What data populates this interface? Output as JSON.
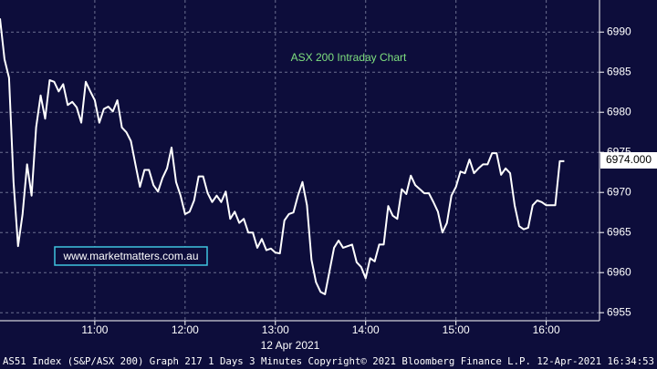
{
  "chart_data": {
    "type": "line",
    "title": "ASX 200 Intraday Chart",
    "watermark": "www.marketmatters.com.au",
    "date_label": "12 Apr 2021",
    "footer": "AS51 Index (S&P/ASX 200) Graph 217 1 Days 3 Minutes Copyright© 2021 Bloomberg Finance L.P. 12-Apr-2021 16:34:53",
    "last_price": {
      "value": 6974,
      "label": "6974.000"
    },
    "x": [
      9.95,
      10,
      10.05,
      10.1,
      10.15,
      10.2,
      10.25,
      10.3,
      10.35,
      10.4,
      10.45,
      10.5,
      10.55,
      10.6,
      10.65,
      10.7,
      10.75,
      10.8,
      10.85,
      10.9,
      10.95,
      11,
      11.05,
      11.1,
      11.15,
      11.2,
      11.25,
      11.3,
      11.35,
      11.4,
      11.45,
      11.5,
      11.55,
      11.6,
      11.65,
      11.7,
      11.75,
      11.8,
      11.85,
      11.9,
      11.95,
      12,
      12.05,
      12.1,
      12.15,
      12.2,
      12.25,
      12.3,
      12.35,
      12.4,
      12.45,
      12.5,
      12.55,
      12.6,
      12.65,
      12.7,
      12.75,
      12.8,
      12.85,
      12.9,
      12.95,
      13,
      13.05,
      13.1,
      13.15,
      13.2,
      13.25,
      13.3,
      13.35,
      13.4,
      13.45,
      13.5,
      13.55,
      13.6,
      13.65,
      13.7,
      13.75,
      13.8,
      13.85,
      13.9,
      13.95,
      14,
      14.05,
      14.1,
      14.15,
      14.2,
      14.25,
      14.3,
      14.35,
      14.4,
      14.45,
      14.5,
      14.55,
      14.6,
      14.65,
      14.7,
      14.75,
      14.8,
      14.85,
      14.9,
      14.95,
      15,
      15.05,
      15.1,
      15.15,
      15.2,
      15.25,
      15.3,
      15.35,
      15.4,
      15.45,
      15.5,
      15.55,
      15.6,
      15.65,
      15.7,
      15.75,
      15.8,
      15.85,
      15.9,
      15.95,
      16,
      16.05,
      16.1,
      16.15,
      16.2
    ],
    "series": [
      {
        "color": "#ffffff",
        "values": [
          6991.7,
          6986.6,
          6984.3,
          6971.3,
          6963.3,
          6967.3,
          6973.5,
          6969.6,
          6978.1,
          6982.1,
          6979.2,
          6984,
          6983.8,
          6982.6,
          6983.5,
          6980.9,
          6981.3,
          6980.6,
          6978.7,
          6983.8,
          6982.6,
          6981.5,
          6978.7,
          6980.4,
          6980.7,
          6980.1,
          6981.5,
          6978.1,
          6977.5,
          6976.4,
          6973.5,
          6970.7,
          6972.8,
          6972.8,
          6970.9,
          6970.1,
          6971.8,
          6973,
          6975.6,
          6971.3,
          6969.6,
          6967.3,
          6967.6,
          6969,
          6972,
          6972,
          6969.9,
          6968.8,
          6969.6,
          6968.8,
          6970.1,
          6966.7,
          6967.6,
          6966.2,
          6966.7,
          6965,
          6965,
          6963.1,
          6964.2,
          6962.8,
          6963,
          6962.5,
          6962.4,
          6966.5,
          6967.3,
          6967.5,
          6969.6,
          6971.3,
          6968.4,
          6961.6,
          6958.8,
          6957.6,
          6957.3,
          6960.2,
          6963.1,
          6964,
          6963.1,
          6963.3,
          6963.5,
          6961.3,
          6960.7,
          6959.3,
          6961.8,
          6961.4,
          6963.5,
          6963.5,
          6968.3,
          6967.1,
          6966.7,
          6970.4,
          6969.8,
          6972.1,
          6970.9,
          6970.4,
          6969.9,
          6969.9,
          6968.8,
          6967.6,
          6965,
          6966.2,
          6969.6,
          6970.7,
          6972.6,
          6972.4,
          6974.1,
          6972.4,
          6973,
          6973.5,
          6973.5,
          6974.9,
          6974.9,
          6972.2,
          6973,
          6972.4,
          6968.4,
          6965.8,
          6965.4,
          6965.6,
          6968.4,
          6969,
          6968.8,
          6968.4,
          6968.4,
          6968.4,
          6973.9,
          6973.9
        ]
      }
    ],
    "xlim": [
      9.95,
      16.59
    ],
    "xticks": [
      {
        "value": 11,
        "label": "11:00"
      },
      {
        "value": 12,
        "label": "12:00"
      },
      {
        "value": 13,
        "label": "13:00"
      },
      {
        "value": 14,
        "label": "14:00"
      },
      {
        "value": 15,
        "label": "15:00"
      },
      {
        "value": 16,
        "label": "16:00"
      }
    ],
    "ylim": [
      6954,
      6994
    ],
    "yticks": [
      6955,
      6960,
      6965,
      6970,
      6975,
      6980,
      6985,
      6990
    ],
    "grid": true
  }
}
